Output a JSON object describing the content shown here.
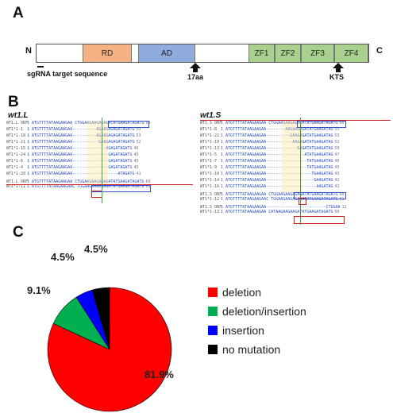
{
  "panelA": {
    "label": "A",
    "n_term": "N",
    "c_term": "C",
    "domains": [
      {
        "name": "RD",
        "color": "#f4b183"
      },
      {
        "name": "AD",
        "color": "#8faadc"
      },
      {
        "name": "ZF1",
        "color": "#a9d18e"
      },
      {
        "name": "ZF2",
        "color": "#a9d18e"
      },
      {
        "name": "ZF3",
        "color": "#a9d18e"
      },
      {
        "name": "ZF4",
        "color": "#a9d18e"
      }
    ],
    "sgRNA_label": "sgRNA target sequence",
    "arrow1_label": "17aa",
    "arrow2_label": "KTS"
  },
  "panelB": {
    "label": "B",
    "left_title": "wt1.L",
    "right_title": "wt1.S",
    "left_rows": [
      {
        "name": "WT1.L ORF",
        "seq": "1 ATGTTTTATAAGAAGAA CTGGAAGAAGAGAGATATGAAGATAGATG",
        "num": "60"
      },
      {
        "name": "WT1*1-1",
        "seq": "1 ATGTTTTATAAGAAGAA----------AGAAGAGAGATAGATG",
        "num": "53"
      },
      {
        "name": "WT1*1-18",
        "seq": "1 ATGTTTTATAAGAAGAA----------AGAAGAGAGATAGATG",
        "num": "53"
      },
      {
        "name": "WT1*1-21",
        "seq": "1 ATGTTTTATAAGAAGAA-----------GAAGAGAGATAGATG",
        "num": "52"
      },
      {
        "name": "WT1*1-15",
        "seq": "1 ATGTTTTATAAGAAGAA--------------AGAGATAGATG",
        "num": "46"
      },
      {
        "name": "WT1*1-24",
        "seq": "1 ATGTTTTATAAGAAGAA---------------GAGATAGATG",
        "num": "45"
      },
      {
        "name": "WT1*1-6",
        "seq": "1 ATGTTTTATAAGAAGAA---------------GAGATAGATG",
        "num": "45"
      },
      {
        "name": "WT1*1-4",
        "seq": "1 ATGTTTTATAAGAAGAA---------------GAGATAGATG",
        "num": "45"
      },
      {
        "name": "WT1*1-20",
        "seq": "1 ATGTTTTATAAGAAGAA-------------------ATAGATG",
        "num": "41"
      },
      {
        "name": "WT1.L ORF",
        "seq": "1 ATGTTTTATAAGAAGAA CTGGAAGAAGAGAGATATGAAGATAGATG",
        "num": "60"
      },
      {
        "name": "WT1*1-11",
        "seq": "1 ATGTTTTATAAGAAGAAC TGGAAGAAGAGAGATATGAAGATAGATG",
        "num": "61"
      }
    ],
    "right_rows": [
      {
        "name": "WT1.S ORF",
        "seq": "1 ATGTTTTATAAGAAGAA CTGGAAGAAGAGAGATATGAAGATAGATG",
        "num": "60"
      },
      {
        "name": "WT1*1-8",
        "seq": "1 ATGTTTTATAAGAAGAA--------AAGAAGAGATATGAAGATAG",
        "num": "55"
      },
      {
        "name": "WT1*1-22",
        "seq": "1 ATGTTTTATAAGAAGAA----------GAAGAGATATGAAGATAG",
        "num": "53"
      },
      {
        "name": "WT1*1-19",
        "seq": "1 ATGTTTTATAAGAAGAA-----------AAGAGATATGAAGATAG",
        "num": "52"
      },
      {
        "name": "WT1*1-13",
        "seq": "1 ATGTTTTATAAGAAGAA-------------GAGATATGAAGATAG",
        "num": "50"
      },
      {
        "name": "WT1*1-5",
        "seq": "1 ATGTTTTATAAGAAGAA----------------ATATGAAGATAG",
        "num": "47"
      },
      {
        "name": "WT1*1-7",
        "seq": "1 ATGTTTTATAAGAAGAA-----------------TATGAAGATAG",
        "num": "46"
      },
      {
        "name": "WT1*1-9",
        "seq": "1 ATGTTTTATAAGAAGAA-----------------TATGAAGATAG",
        "num": "45"
      },
      {
        "name": "WT1*1-10",
        "seq": "1 ATGTTTTATAAGAAGAA-------------------TGAAGATAG",
        "num": "43"
      },
      {
        "name": "WT1*1-14",
        "seq": "1 ATGTTTTATAAGAAGAA--------------------GAAGATAG",
        "num": "42"
      },
      {
        "name": "WT1*1-16",
        "seq": "1 ATGTTTTATAAGAAGAA---------------------AAGATAG",
        "num": "41"
      },
      {
        "name": "WT1.S ORF",
        "seq": "1 ATGTTTTATAAGAAGAA CTGGAAGAAGAGAGATATGAAGATAGATG",
        "num": "60"
      },
      {
        "name": "WT1*1-12",
        "seq": "1 ATGTTTTATAAGAAGAAC TGGAAGAAGAGAGATATGAAGATAGATG",
        "num": "61"
      },
      {
        "name": "WT1.S ORF",
        "seq": "1 ATGTTTTATAAGAAGAA-------------------------CTGGAA",
        "num": "12"
      },
      {
        "name": "WT1*1-13",
        "seq": "1 ATGTTTTATAAGAAGAA CATAAGAAGAAGATATGAAGATAGATG",
        "num": "60"
      }
    ]
  },
  "panelC": {
    "label": "C",
    "chart_data": {
      "type": "pie",
      "labels": [
        "deletion",
        "deletion/insertion",
        "insertion",
        "no mutation"
      ],
      "values": [
        81.9,
        9.1,
        4.5,
        4.5
      ],
      "value_labels": [
        "81.9%",
        "9.1%",
        "4.5%",
        "4.5%"
      ],
      "colors": [
        "#ff0000",
        "#00b050",
        "#0000ff",
        "#000000"
      ]
    }
  }
}
